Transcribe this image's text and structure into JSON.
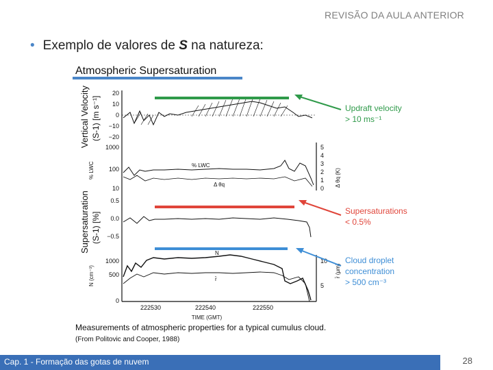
{
  "slide": {
    "header": "REVISÃO DA AULA ANTERIOR",
    "bullet_prefix": "Exemplo de valores de ",
    "bullet_bold": "S",
    "bullet_suffix": " na natureza:",
    "footer": "Cap. 1 - Formação das gotas de nuvem",
    "page_number": "28"
  },
  "figure": {
    "title": "Atmospheric Supersaturation",
    "panel1_ylabel_a": "Vertical Velocity",
    "panel1_ylabel_b": "(S-1) [m s⁻¹]",
    "panel1_ticks": [
      "20",
      "10",
      "0",
      "−10",
      "−20"
    ],
    "panel2_ylabel_left": "%  LWC",
    "panel2_ticks_left": [
      "1000",
      "100",
      "10"
    ],
    "panel2_ylabel_right": "Δ θq (K)",
    "panel2_ticks_right": [
      "5",
      "4",
      "3",
      "2",
      "1",
      "0"
    ],
    "panel2_label_lwc": "% LWC",
    "panel2_label_dtheta": "Δ θq",
    "panel3_ylabel_a": "Supersaturation",
    "panel3_ylabel_b": "(S-1) [%]",
    "panel3_ticks": [
      "0.5",
      "0.0",
      "−0.5"
    ],
    "panel4_ylabel_left": "N (cm⁻³)",
    "panel4_ticks_left": [
      "1000",
      "500",
      "0"
    ],
    "panel4_ylabel_right": "r̄ (μm)",
    "panel4_ticks_right": [
      "10",
      "5"
    ],
    "panel4_label_n": "N",
    "panel4_label_r": "r̄",
    "x_ticks": [
      "222530",
      "222540",
      "222550"
    ],
    "x_label": "TIME   (GMT)",
    "caption": "Measurements of atmospheric properties for a typical cumulus cloud.",
    "source": "(From Politovic and Cooper, 1988)",
    "annotations": [
      {
        "line1": "Updraft velocity",
        "line2": "> 10 ms⁻¹",
        "line3": "",
        "color": "#2f9a4a"
      },
      {
        "line1": "Supersaturations",
        "line2": "< 0.5%",
        "line3": "",
        "color": "#e0453a"
      },
      {
        "line1": "Cloud droplet",
        "line2": "concentration",
        "line3": "> 500 cm⁻³",
        "color": "#3e8ed6"
      }
    ],
    "title_underline_color": "#4a86c8"
  }
}
